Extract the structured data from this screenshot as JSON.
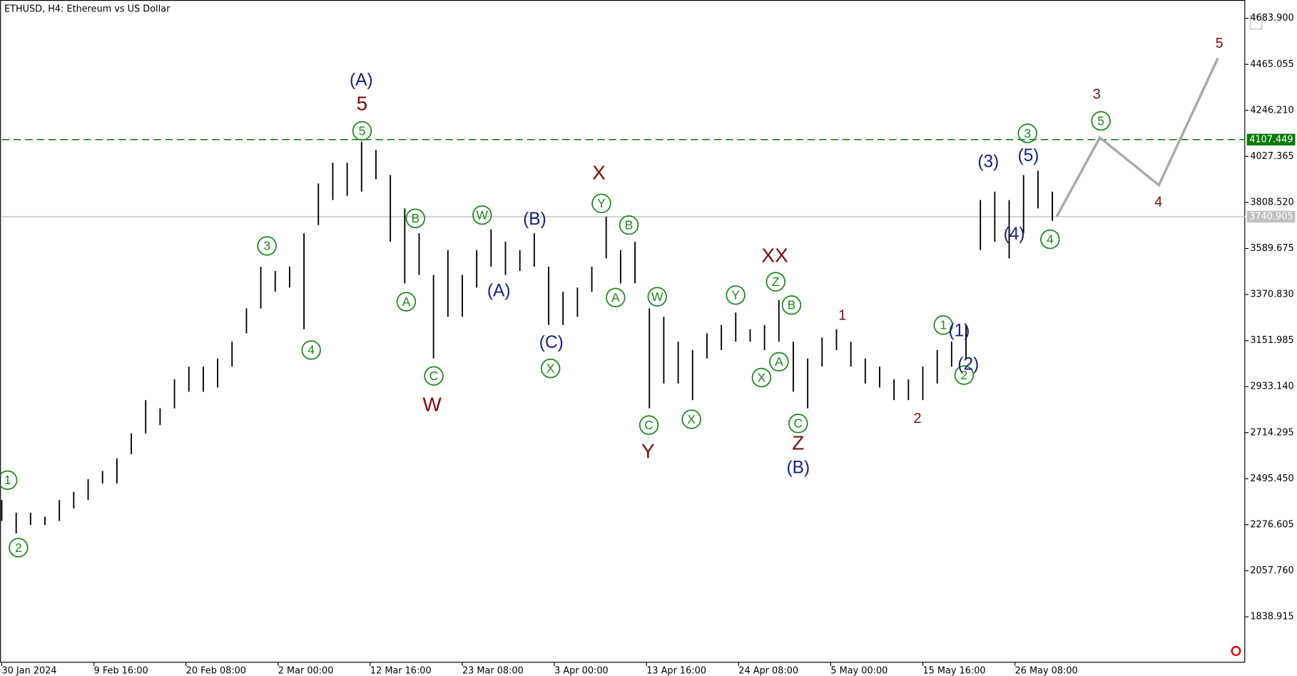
{
  "chart_data": {
    "type": "range",
    "title": "ETHUSD, H4:  Ethereum vs US Dollar",
    "color": "#000000",
    "ylim": [
      1621,
      4771
    ],
    "yticks": [
      {
        "value": 4683.9,
        "label": "4683.900"
      },
      {
        "value": 4465.055,
        "label": "4465.055"
      },
      {
        "value": 4246.21,
        "label": "4246.210"
      },
      {
        "value": 4027.365,
        "label": "4027.365"
      },
      {
        "value": 3808.52,
        "label": "3808.520"
      },
      {
        "value": 3589.675,
        "label": "3589.675"
      },
      {
        "value": 3370.83,
        "label": "3370.830"
      },
      {
        "value": 3151.985,
        "label": "3151.985"
      },
      {
        "value": 2933.14,
        "label": "2933.140"
      },
      {
        "value": 2714.295,
        "label": "2714.295"
      },
      {
        "value": 2495.45,
        "label": "2495.450"
      },
      {
        "value": 2276.605,
        "label": "2276.605"
      },
      {
        "value": 2057.76,
        "label": "2057.760"
      },
      {
        "value": 1838.915,
        "label": "1838.915"
      }
    ],
    "xlim": [
      -1,
      864
    ],
    "xticks": [
      {
        "value": 0,
        "label": "30 Jan 2024"
      },
      {
        "value": 64,
        "label": "9 Feb 16:00"
      },
      {
        "value": 128,
        "label": "20 Feb 08:00"
      },
      {
        "value": 192,
        "label": "2 Mar 00:00"
      },
      {
        "value": 256,
        "label": "12 Mar 16:00"
      },
      {
        "value": 320,
        "label": "23 Mar 08:00"
      },
      {
        "value": 384,
        "label": "3 Apr 00:00"
      },
      {
        "value": 448,
        "label": "13 Apr 16:00"
      },
      {
        "value": 512,
        "label": "24 Apr 08:00"
      },
      {
        "value": 576,
        "label": "5 May 00:00"
      },
      {
        "value": 640,
        "label": "15 May 16:00"
      },
      {
        "value": 704,
        "label": "26 May 08:00"
      }
    ],
    "x": [
      0,
      10,
      20,
      30,
      40,
      50,
      60,
      70,
      80,
      90,
      100,
      110,
      120,
      130,
      140,
      150,
      160,
      170,
      180,
      190,
      200,
      210,
      220,
      230,
      240,
      250,
      260,
      270,
      280,
      290,
      300,
      310,
      320,
      330,
      340,
      350,
      360,
      370,
      380,
      390,
      400,
      410,
      420,
      430,
      440,
      450,
      460,
      470,
      480,
      490,
      500,
      510,
      520,
      530,
      540,
      550,
      560,
      570,
      580,
      590,
      600,
      610,
      620,
      630,
      640,
      650,
      660,
      670,
      680,
      690,
      700,
      710,
      720,
      730
    ],
    "high": [
      2394,
      2334,
      2334,
      2315,
      2394,
      2433,
      2493,
      2532,
      2592,
      2711,
      2869,
      2830,
      2968,
      3028,
      3028,
      3067,
      3147,
      3305,
      3503,
      3483,
      3503,
      3662,
      3899,
      3998,
      3998,
      4097,
      4058,
      3939,
      3780,
      3662,
      3464,
      3582,
      3464,
      3582,
      3681,
      3622,
      3582,
      3662,
      3503,
      3384,
      3404,
      3503,
      3741,
      3582,
      3622,
      3305,
      3265,
      3147,
      3107,
      3186,
      3226,
      3285,
      3206,
      3226,
      3345,
      3147,
      3067,
      3167,
      3206,
      3147,
      3067,
      3028,
      2968,
      2968,
      3028,
      3107,
      3147,
      3226,
      3820,
      3860,
      3820,
      3939,
      3959,
      3860
    ],
    "low": [
      2295,
      2235,
      2275,
      2275,
      2295,
      2354,
      2394,
      2473,
      2473,
      2612,
      2711,
      2750,
      2830,
      2909,
      2909,
      2929,
      3028,
      3186,
      3305,
      3384,
      3404,
      3206,
      3701,
      3820,
      3840,
      3860,
      3919,
      3622,
      3424,
      3464,
      3067,
      3265,
      3265,
      3404,
      3503,
      3464,
      3483,
      3503,
      3226,
      3226,
      3265,
      3384,
      3543,
      3424,
      3424,
      2830,
      2948,
      2948,
      2869,
      3067,
      3107,
      3147,
      3147,
      3107,
      3147,
      2909,
      2830,
      3028,
      3107,
      3028,
      2948,
      2929,
      2869,
      2869,
      2869,
      2948,
      3028,
      3067,
      3582,
      3622,
      3543,
      3662,
      3780,
      3721
    ],
    "levels": [
      {
        "value": 4107.449,
        "label": "4107.449",
        "color": "#0a7a0a"
      },
      {
        "value": 3740.905,
        "label": "3740.905",
        "color": "#c0c0c0"
      }
    ],
    "forecast": {
      "x": [
        733,
        763,
        804,
        845
      ],
      "values": [
        3740.905,
        4117,
        3891,
        4494
      ],
      "color": "#aaaaaa"
    },
    "circled_labels": {
      "color": "#1a8a1a",
      "texts": [
        "1",
        "2",
        "3",
        "4",
        "5",
        "B",
        "A",
        "C",
        "W",
        "X",
        "Y",
        "B",
        "A",
        "C",
        "W",
        "X",
        "Y",
        "Z",
        "B",
        "X",
        "A",
        "C",
        "1",
        "2",
        "3",
        "5",
        "4"
      ]
    },
    "blue_labels": {
      "color": "#1a237e",
      "texts": [
        "(A)",
        "(B)",
        "(A)",
        "(C)",
        "(B)",
        "(1)",
        "(2)",
        "(3)",
        "(5)",
        "(4)"
      ]
    },
    "red_labels": {
      "color": "#7b0c0c",
      "texts": [
        "5",
        "W",
        "X",
        "Y",
        "XX",
        "Z"
      ]
    },
    "small_red_labels": {
      "color": "#7b0c0c",
      "texts": [
        "1",
        "2",
        "3",
        "4",
        "5"
      ]
    }
  }
}
